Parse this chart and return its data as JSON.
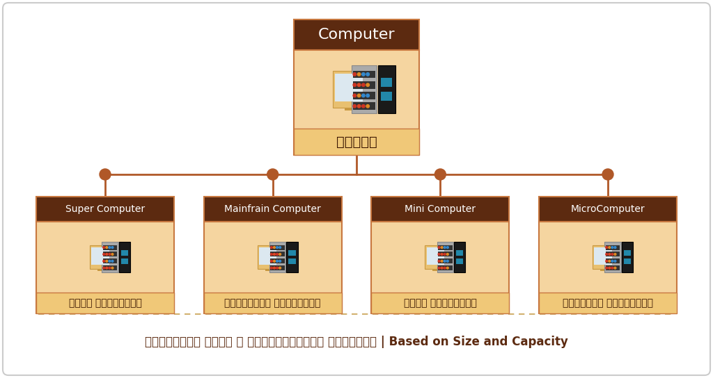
{
  "bg_color": "#ffffff",
  "card_bg": "#f5f5f5",
  "title_text": "Computer",
  "title_bg": "#5c2a10",
  "title_color": "#ffffff",
  "title_fontsize": 16,
  "root_label": "संगणक",
  "root_label_fontsize": 14,
  "root_box_fill": "#f5d5a0",
  "root_box_border": "#c87840",
  "children": [
    {
      "title": "Super Computer",
      "label": "सुपर कॉम्यूटर"
    },
    {
      "title": "Mainfrain Computer",
      "label": "मेनफ्रेम कॉम्यूटर"
    },
    {
      "title": "Mini Computer",
      "label": "मिनी कॉम्यूटर"
    },
    {
      "title": "MicroComputer",
      "label": "मायक्रो कॉम्यूटर"
    }
  ],
  "child_title_bg": "#5c2a10",
  "child_title_color": "#ffffff",
  "child_title_fontsize": 10,
  "child_box_fill": "#f5d5a0",
  "child_box_border": "#c87840",
  "child_label_fontsize": 10,
  "line_color": "#b05828",
  "dot_color": "#b05828",
  "footer_text": "संगणकाचा आकार व क्षमतेनूसार विभागणी | Based on Size and Capacity",
  "footer_color": "#5c2a10",
  "footer_fontsize": 12,
  "sep_color": "#c8a050",
  "outer_border_color": "#cccccc"
}
